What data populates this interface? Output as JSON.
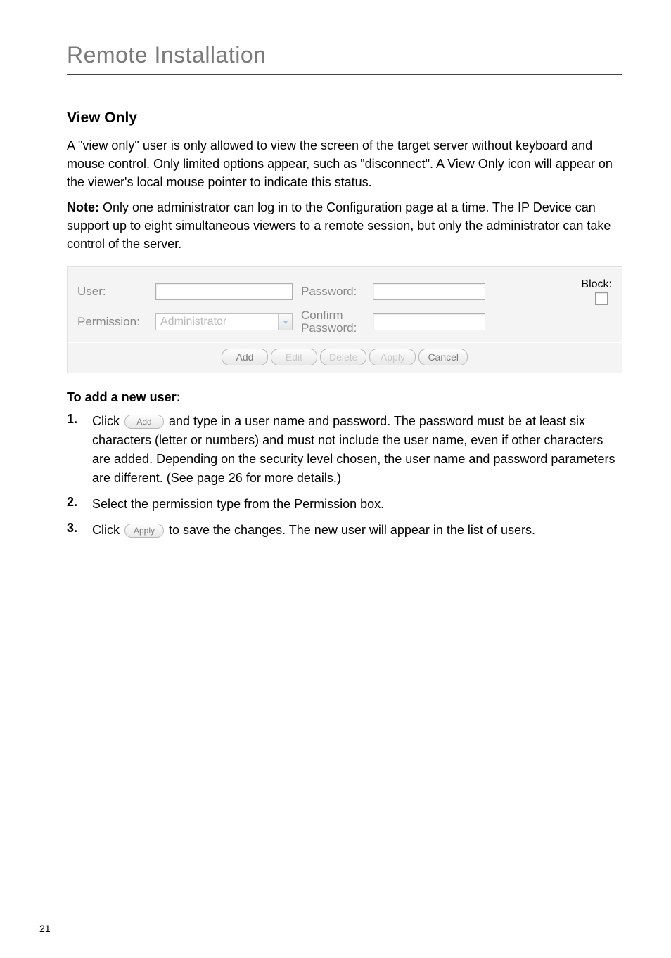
{
  "page": {
    "title": "Remote Installation",
    "number": "21"
  },
  "section": {
    "heading": "View Only",
    "para1": "A \"view only\" user is only allowed to view the screen of the target server without keyboard and mouse control. Only limited options appear, such as \"disconnect\". A View Only icon will appear on the viewer's local mouse pointer to indicate this status.",
    "note_label": "Note:",
    "note_body": " Only one administrator can log in to the Configuration page at a time. The IP Device can support up to eight simultaneous viewers to a remote session, but only the administrator can take control of the server."
  },
  "form": {
    "user_label": "User:",
    "password_label": "Password:",
    "block_label": "Block:",
    "permission_label": "Permission:",
    "permission_value": "Administrator",
    "confirm_label_line1": "Confirm",
    "confirm_label_line2": "Password:",
    "buttons": {
      "add": "Add",
      "edit": "Edit",
      "delete": "Delete",
      "apply": "Apply",
      "cancel": "Cancel"
    }
  },
  "howto": {
    "heading": "To add a new user:",
    "step1_pre": "Click ",
    "step1_btn": "Add",
    "step1_post": " and type in a user name and password. The password must be at least six characters (letter or numbers) and must not include the user name, even if other characters are added. Depending on the security level chosen, the user name and password parameters are different. (See page 26 for more details.)",
    "step2": "Select the permission type from the Permission box.",
    "step3_pre": "Click ",
    "step3_btn": "Apply",
    "step3_post": " to save the changes. The new user will appear in the list of users.",
    "num1": "1.",
    "num2": "2.",
    "num3": "3."
  }
}
